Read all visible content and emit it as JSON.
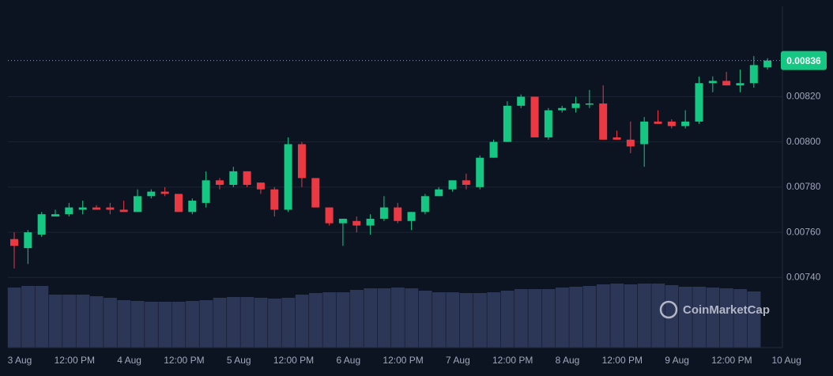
{
  "chart_data": {
    "type": "candlestick",
    "open": [
      0.00757,
      0.00753,
      0.00759,
      0.00767,
      0.00768,
      0.0077,
      0.00771,
      0.00771,
      0.0077,
      0.00769,
      0.00776,
      0.00778,
      0.00777,
      0.00769,
      0.00773,
      0.00783,
      0.00781,
      0.00787,
      0.00782,
      0.00779,
      0.0077,
      0.00799,
      0.00784,
      0.00771,
      0.00764,
      0.00765,
      0.00763,
      0.00766,
      0.00771,
      0.00765,
      0.00769,
      0.00776,
      0.00779,
      0.00783,
      0.0078,
      0.00793,
      0.008,
      0.00816,
      0.0082,
      0.00802,
      0.00814,
      0.00815,
      0.00817,
      0.00817,
      0.00802,
      0.00801,
      0.00799,
      0.00809,
      0.00809,
      0.00807,
      0.00809,
      0.00826,
      0.00827,
      0.00825,
      0.00826,
      0.00833
    ],
    "high": [
      0.0076,
      0.00761,
      0.00769,
      0.0077,
      0.00773,
      0.00774,
      0.00772,
      0.00773,
      0.00774,
      0.00779,
      0.00779,
      0.0078,
      0.00777,
      0.00775,
      0.00787,
      0.00784,
      0.00789,
      0.00787,
      0.00782,
      0.0078,
      0.00802,
      0.008,
      0.00784,
      0.00771,
      0.00766,
      0.00767,
      0.00768,
      0.00776,
      0.00773,
      0.00769,
      0.00777,
      0.0078,
      0.00783,
      0.00786,
      0.00794,
      0.00801,
      0.00818,
      0.00821,
      0.0082,
      0.00815,
      0.00816,
      0.0082,
      0.00823,
      0.00825,
      0.00805,
      0.00809,
      0.00811,
      0.00814,
      0.0081,
      0.00814,
      0.00829,
      0.00829,
      0.00831,
      0.00832,
      0.00838,
      0.00837
    ],
    "low": [
      0.00744,
      0.00746,
      0.00758,
      0.00767,
      0.00767,
      0.00768,
      0.0077,
      0.00768,
      0.00769,
      0.00769,
      0.00775,
      0.00776,
      0.00769,
      0.00768,
      0.00771,
      0.00779,
      0.0078,
      0.0078,
      0.00777,
      0.00767,
      0.00769,
      0.0078,
      0.00771,
      0.00763,
      0.00754,
      0.0076,
      0.00759,
      0.00765,
      0.00764,
      0.00761,
      0.00768,
      0.00776,
      0.00778,
      0.00779,
      0.00779,
      0.00793,
      0.008,
      0.00815,
      0.00802,
      0.00801,
      0.00813,
      0.00813,
      0.00815,
      0.00801,
      0.00801,
      0.00795,
      0.00789,
      0.00808,
      0.00806,
      0.00806,
      0.00808,
      0.00822,
      0.00825,
      0.00822,
      0.00824,
      0.00832
    ],
    "close": [
      0.00754,
      0.0076,
      0.00768,
      0.00768,
      0.00771,
      0.00771,
      0.0077,
      0.0077,
      0.00769,
      0.00776,
      0.00778,
      0.00777,
      0.00769,
      0.00774,
      0.00783,
      0.00781,
      0.00787,
      0.00781,
      0.00779,
      0.0077,
      0.00799,
      0.00784,
      0.00771,
      0.00764,
      0.00766,
      0.00763,
      0.00766,
      0.00771,
      0.00765,
      0.00769,
      0.00776,
      0.00779,
      0.00783,
      0.00781,
      0.00793,
      0.008,
      0.00816,
      0.0082,
      0.00802,
      0.00814,
      0.00815,
      0.00817,
      0.00817,
      0.00801,
      0.00801,
      0.00798,
      0.00809,
      0.00808,
      0.00807,
      0.00809,
      0.00826,
      0.00827,
      0.00825,
      0.00826,
      0.00834,
      0.00836
    ],
    "volume": [
      76,
      78,
      78,
      67,
      67,
      67,
      65,
      63,
      60,
      59,
      58,
      58,
      58,
      59,
      60,
      63,
      64,
      64,
      63,
      62,
      63,
      67,
      69,
      70,
      70,
      73,
      75,
      75,
      76,
      75,
      72,
      70,
      70,
      69,
      69,
      70,
      72,
      74,
      74,
      74,
      76,
      77,
      78,
      80,
      81,
      80,
      81,
      81,
      79,
      77,
      77,
      76,
      75,
      74,
      71,
      null
    ],
    "up_color": "#16c784",
    "down_color": "#ea3943",
    "volume_color": "#2c3656",
    "ylim": [
      0.00709,
      0.0086
    ],
    "yticks": [
      {
        "value": 0.0074,
        "label": "0.00740"
      },
      {
        "value": 0.0076,
        "label": "0.00760"
      },
      {
        "value": 0.0078,
        "label": "0.00780"
      },
      {
        "value": 0.008,
        "label": "0.00800"
      },
      {
        "value": 0.0082,
        "label": "0.00820"
      }
    ],
    "xticks": [
      "3 Aug",
      "12:00 PM",
      "4 Aug",
      "12:00 PM",
      "5 Aug",
      "12:00 PM",
      "6 Aug",
      "12:00 PM",
      "7 Aug",
      "12:00 PM",
      "8 Aug",
      "12:00 PM",
      "9 Aug",
      "12:00 PM",
      "10 Aug"
    ],
    "last_price": 0.00836,
    "watermark": "CoinMarketCap",
    "grid": true
  }
}
